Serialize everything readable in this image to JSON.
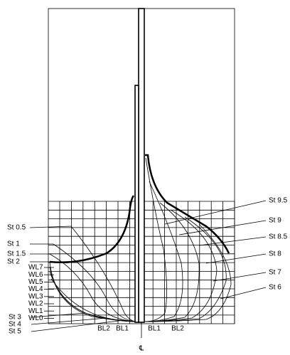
{
  "labels": {
    "left_stations": [
      "St 0.5",
      "St 1",
      "St 1.5",
      "St 2",
      "St 3",
      "St 4",
      "St 5"
    ],
    "waterlines": [
      "WL7",
      "WL6",
      "WL5",
      "WL4",
      "WL3",
      "WL2",
      "WL1",
      "WL0"
    ],
    "right_stations": [
      "St 9.5",
      "St 9",
      "St 8.5",
      "St 8",
      "St 7",
      "St 6"
    ],
    "buttock_lines": [
      "BL2",
      "BL1",
      "BL1",
      "BL2"
    ],
    "centerline": "℄"
  }
}
